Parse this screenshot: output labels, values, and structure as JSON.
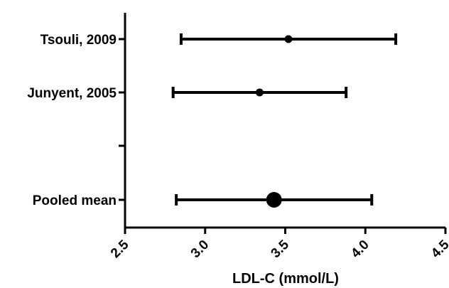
{
  "chart_data": {
    "type": "forest",
    "xlabel": "LDL-C (mmol/L)",
    "xlim": [
      2.5,
      4.5
    ],
    "xticks": [
      "2.5",
      "3.0",
      "3.5",
      "4.0",
      "4.5"
    ],
    "rows": [
      {
        "label": "Tsouli, 2009",
        "mean": 3.52,
        "lower": 2.85,
        "upper": 4.19,
        "marker": "small"
      },
      {
        "label": "Junyent, 2005",
        "mean": 3.34,
        "lower": 2.8,
        "upper": 3.88,
        "marker": "small"
      },
      {
        "label": "",
        "mean": null,
        "lower": null,
        "upper": null,
        "marker": "none"
      },
      {
        "label": "Pooled mean",
        "mean": 3.43,
        "lower": 2.82,
        "upper": 4.04,
        "marker": "large"
      }
    ],
    "grid": false,
    "legend": "none",
    "color": "#000000"
  }
}
